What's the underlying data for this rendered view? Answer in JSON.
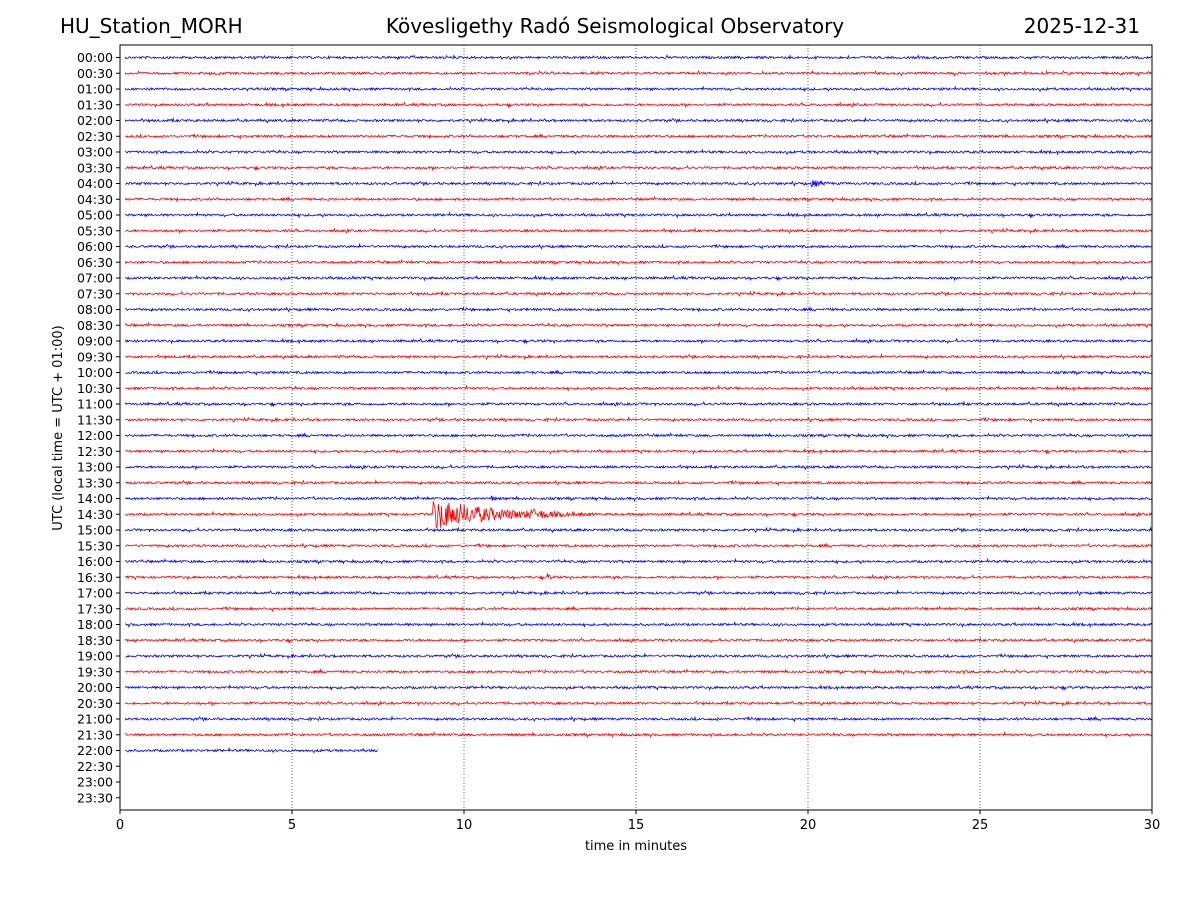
{
  "header": {
    "station": "HU_Station_MORH",
    "title": "Kövesligethy Radó Seismological Observatory",
    "date": "2025-12-31"
  },
  "chart_data": {
    "type": "line",
    "title": "Kövesligethy Radó Seismological Observatory",
    "xlabel": "time in minutes",
    "ylabel": "UTC (local time = UTC + 01:00)",
    "xlim": [
      0,
      30
    ],
    "xticks": [
      "0",
      "5",
      "10",
      "15",
      "20",
      "25",
      "30"
    ],
    "x_gridlines": [
      5,
      10,
      15,
      20,
      25
    ],
    "grid": "vertical dotted",
    "row_labels": [
      "00:00",
      "00:30",
      "01:00",
      "01:30",
      "02:00",
      "02:30",
      "03:00",
      "03:30",
      "04:00",
      "04:30",
      "05:00",
      "05:30",
      "06:00",
      "06:30",
      "07:00",
      "07:30",
      "08:00",
      "08:30",
      "09:00",
      "09:30",
      "10:00",
      "10:30",
      "11:00",
      "11:30",
      "12:00",
      "12:30",
      "13:00",
      "13:30",
      "14:00",
      "14:30",
      "15:00",
      "15:30",
      "16:00",
      "16:30",
      "17:00",
      "17:30",
      "18:00",
      "18:30",
      "19:00",
      "19:30",
      "20:00",
      "20:30",
      "21:00",
      "21:30",
      "22:00",
      "22:30",
      "23:00",
      "23:30"
    ],
    "trace_colors": [
      "#0000ff",
      "#ff0000"
    ],
    "traces_present": 45,
    "last_trace_end_minute": 7.5,
    "events": [
      {
        "row": "04:00",
        "start_min": 20.1,
        "end_min": 21.5,
        "amplitude": 0.45
      },
      {
        "row": "14:00",
        "start_min": 10.8,
        "end_min": 11.3,
        "amplitude": 0.35
      },
      {
        "row": "14:30",
        "start_min": 9.1,
        "end_min": 15.2,
        "amplitude": 1.6,
        "secondary_start_min": 11.9,
        "secondary_amplitude": 0.6
      },
      {
        "row": "16:30",
        "start_min": 12.4,
        "end_min": 13.0,
        "amplitude": 0.45
      }
    ]
  }
}
